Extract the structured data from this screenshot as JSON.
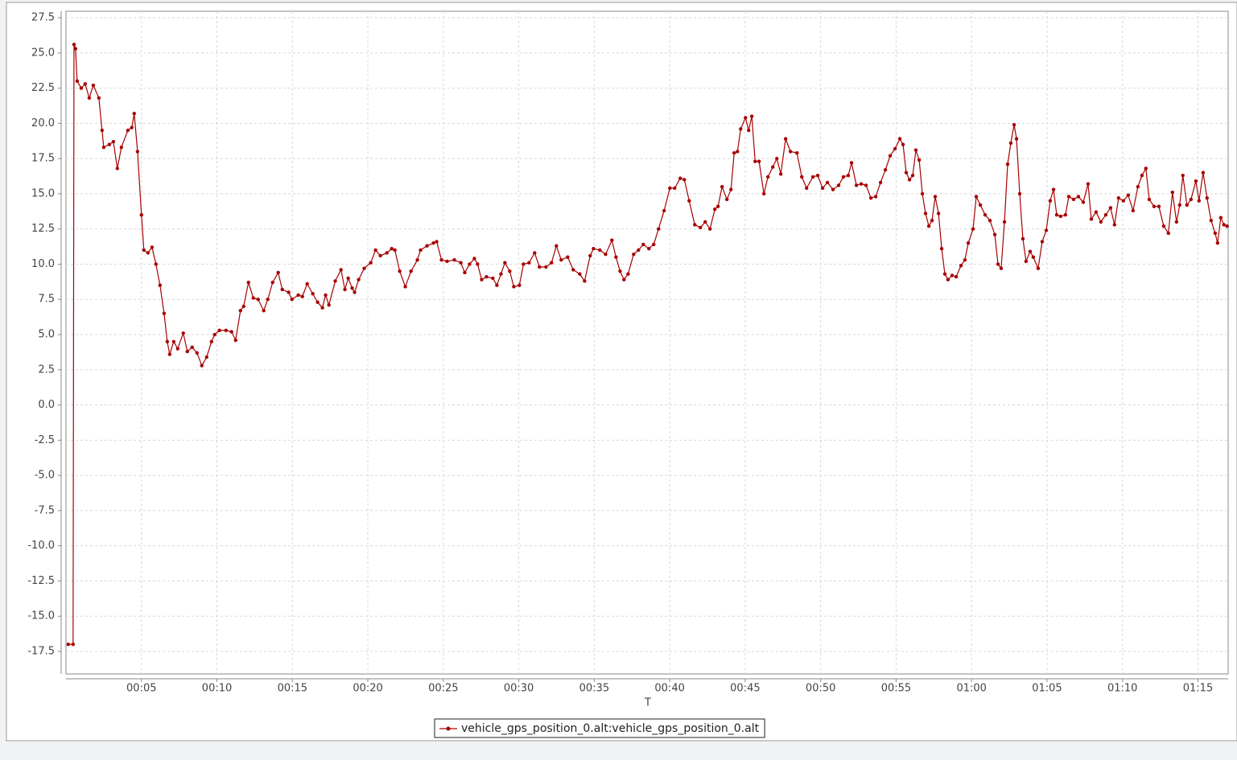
{
  "chart_data": {
    "type": "line",
    "x_label": "T",
    "xlim": [
      0,
      77.0
    ],
    "ylim": [
      -19.1,
      27.96
    ],
    "xticks": [
      {
        "value": 5,
        "label": "00:05"
      },
      {
        "value": 10,
        "label": "00:10"
      },
      {
        "value": 15,
        "label": "00:15"
      },
      {
        "value": 20,
        "label": "00:20"
      },
      {
        "value": 25,
        "label": "00:25"
      },
      {
        "value": 30,
        "label": "00:30"
      },
      {
        "value": 35,
        "label": "00:35"
      },
      {
        "value": 40,
        "label": "00:40"
      },
      {
        "value": 45,
        "label": "00:45"
      },
      {
        "value": 50,
        "label": "00:50"
      },
      {
        "value": 55,
        "label": "00:55"
      },
      {
        "value": 60,
        "label": "01:00"
      },
      {
        "value": 65,
        "label": "01:05"
      },
      {
        "value": 70,
        "label": "01:10"
      },
      {
        "value": 75,
        "label": "01:15"
      }
    ],
    "yticks": [
      27.5,
      {
        "value": 25,
        "label": "25.0"
      },
      22.5,
      {
        "value": 20,
        "label": "20.0"
      },
      17.5,
      {
        "value": 15,
        "label": "15.0"
      },
      12.5,
      {
        "value": 10,
        "label": "10.0"
      },
      7.5,
      {
        "value": 5,
        "label": "5.0"
      },
      2.5,
      {
        "value": 0,
        "label": "0.0"
      },
      -2.5,
      {
        "value": -5,
        "label": "-5.0"
      },
      -7.5,
      {
        "value": -10,
        "label": "-10.0"
      },
      -12.5,
      {
        "value": -15,
        "label": "-15.0"
      },
      -17.5
    ],
    "grid": true,
    "legend": "bottom",
    "x": [
      0.15,
      0.47,
      0.53,
      0.63,
      0.74,
      1.01,
      1.27,
      1.54,
      1.81,
      2.18,
      2.39,
      2.5,
      2.87,
      3.14,
      3.4,
      3.67,
      4.1,
      4.36,
      4.52,
      4.74,
      5.0,
      5.16,
      5.43,
      5.7,
      5.96,
      6.23,
      6.5,
      6.71,
      6.87,
      7.14,
      7.4,
      7.77,
      8.04,
      8.36,
      8.68,
      9.0,
      9.32,
      9.64,
      9.85,
      10.17,
      10.6,
      10.97,
      11.24,
      11.56,
      11.77,
      12.09,
      12.41,
      12.73,
      13.1,
      13.37,
      13.69,
      14.06,
      14.33,
      14.75,
      14.97,
      15.39,
      15.66,
      15.98,
      16.35,
      16.67,
      16.99,
      17.2,
      17.42,
      17.84,
      18.22,
      18.48,
      18.7,
      18.96,
      19.12,
      19.39,
      19.76,
      20.19,
      20.51,
      20.83,
      21.26,
      21.58,
      21.79,
      22.11,
      22.48,
      22.86,
      23.28,
      23.49,
      23.92,
      24.35,
      24.56,
      24.88,
      25.25,
      25.73,
      26.16,
      26.42,
      26.74,
      27.06,
      27.27,
      27.54,
      27.86,
      28.28,
      28.55,
      28.82,
      29.08,
      29.4,
      29.67,
      30.04,
      30.31,
      30.68,
      31.05,
      31.37,
      31.8,
      32.17,
      32.49,
      32.81,
      33.24,
      33.61,
      34.04,
      34.36,
      34.73,
      34.95,
      35.37,
      35.75,
      36.17,
      36.44,
      36.71,
      36.97,
      37.24,
      37.61,
      37.93,
      38.25,
      38.62,
      38.94,
      39.26,
      39.63,
      40.01,
      40.33,
      40.7,
      40.97,
      41.29,
      41.66,
      42.03,
      42.35,
      42.67,
      42.99,
      43.2,
      43.47,
      43.79,
      44.06,
      44.27,
      44.49,
      44.7,
      45.02,
      45.23,
      45.44,
      45.66,
      45.92,
      46.24,
      46.51,
      46.83,
      47.1,
      47.36,
      47.68,
      48.0,
      48.43,
      48.75,
      49.07,
      49.49,
      49.81,
      50.13,
      50.45,
      50.82,
      51.19,
      51.51,
      51.83,
      52.05,
      52.37,
      52.69,
      53.01,
      53.33,
      53.65,
      53.97,
      54.29,
      54.61,
      54.93,
      55.25,
      55.46,
      55.67,
      55.89,
      56.1,
      56.31,
      56.53,
      56.74,
      56.95,
      57.17,
      57.38,
      57.59,
      57.81,
      58.02,
      58.23,
      58.44,
      58.71,
      58.98,
      59.3,
      59.56,
      59.78,
      60.1,
      60.31,
      60.58,
      60.9,
      61.22,
      61.54,
      61.75,
      61.96,
      62.18,
      62.39,
      62.6,
      62.82,
      62.98,
      63.19,
      63.4,
      63.61,
      63.88,
      64.09,
      64.41,
      64.68,
      64.95,
      65.21,
      65.43,
      65.64,
      65.9,
      66.22,
      66.44,
      66.76,
      67.08,
      67.4,
      67.72,
      67.93,
      68.25,
      68.57,
      68.89,
      69.21,
      69.47,
      69.74,
      70.06,
      70.38,
      70.7,
      71.02,
      71.29,
      71.55,
      71.77,
      72.09,
      72.41,
      72.73,
      73.04,
      73.31,
      73.58,
      73.79,
      74.0,
      74.27,
      74.54,
      74.86,
      75.07,
      75.34,
      75.6,
      75.87,
      76.14,
      76.3,
      76.51,
      76.72,
      76.93
    ],
    "series": [
      {
        "name": "vehicle_gps_position_0.alt:vehicle_gps_position_0.alt",
        "color": "#a80000",
        "values": [
          -17,
          -17,
          25.6,
          25.3,
          23,
          22.5,
          22.8,
          21.8,
          22.7,
          21.8,
          19.5,
          18.3,
          18.5,
          18.7,
          16.8,
          18.3,
          19.5,
          19.7,
          20.7,
          18,
          13.5,
          11,
          10.8,
          11.2,
          10,
          8.5,
          6.5,
          4.5,
          3.6,
          4.5,
          4,
          5.1,
          3.8,
          4.1,
          3.7,
          2.8,
          3.4,
          4.5,
          5,
          5.3,
          5.3,
          5.2,
          4.6,
          6.7,
          7,
          8.7,
          7.6,
          7.5,
          6.7,
          7.5,
          8.7,
          9.4,
          8.2,
          8,
          7.5,
          7.8,
          7.7,
          8.6,
          7.9,
          7.3,
          6.9,
          7.8,
          7.1,
          8.8,
          9.6,
          8.2,
          9,
          8.3,
          8,
          8.9,
          9.7,
          10.1,
          11,
          10.6,
          10.8,
          11.1,
          11,
          9.5,
          8.4,
          9.5,
          10.3,
          11,
          11.3,
          11.5,
          11.6,
          10.3,
          10.2,
          10.3,
          10.1,
          9.4,
          10,
          10.4,
          10,
          8.9,
          9.1,
          9,
          8.5,
          9.3,
          10.1,
          9.5,
          8.4,
          8.5,
          10,
          10.1,
          10.8,
          9.8,
          9.8,
          10.1,
          11.3,
          10.3,
          10.5,
          9.6,
          9.3,
          8.8,
          10.6,
          11.1,
          11,
          10.7,
          11.7,
          10.5,
          9.5,
          8.9,
          9.3,
          10.7,
          11,
          11.4,
          11.1,
          11.4,
          12.5,
          13.8,
          15.4,
          15.4,
          16.1,
          16,
          14.5,
          12.8,
          12.6,
          13,
          12.5,
          13.9,
          14.1,
          15.5,
          14.6,
          15.3,
          17.9,
          18,
          19.6,
          20.4,
          19.5,
          20.5,
          17.3,
          17.3,
          15,
          16.2,
          16.9,
          17.5,
          16.4,
          18.9,
          18,
          17.9,
          16.2,
          15.4,
          16.2,
          16.3,
          15.4,
          15.8,
          15.3,
          15.6,
          16.2,
          16.3,
          17.2,
          15.6,
          15.7,
          15.6,
          14.7,
          14.8,
          15.8,
          16.7,
          17.7,
          18.2,
          18.9,
          18.5,
          16.5,
          16,
          16.3,
          18.1,
          17.4,
          15,
          13.6,
          12.7,
          13.1,
          14.8,
          13.6,
          11.1,
          9.3,
          8.9,
          9.2,
          9.1,
          9.9,
          10.3,
          11.5,
          12.5,
          14.8,
          14.2,
          13.5,
          13.1,
          12.1,
          10,
          9.7,
          13,
          17.1,
          18.6,
          19.9,
          18.9,
          15,
          11.8,
          10.2,
          10.9,
          10.5,
          9.7,
          11.6,
          12.4,
          14.5,
          15.3,
          13.5,
          13.4,
          13.5,
          14.8,
          14.6,
          14.8,
          14.4,
          15.7,
          13.2,
          13.7,
          13,
          13.5,
          14,
          12.8,
          14.7,
          14.5,
          14.9,
          13.8,
          15.5,
          16.3,
          16.8,
          14.6,
          14.1,
          14.1,
          12.7,
          12.2,
          15.1,
          13,
          14.2,
          16.3,
          14.2,
          14.6,
          15.9,
          14.5,
          16.5,
          14.7,
          13.1,
          12.2,
          11.5,
          13.3,
          12.8,
          12.7
        ]
      }
    ]
  }
}
